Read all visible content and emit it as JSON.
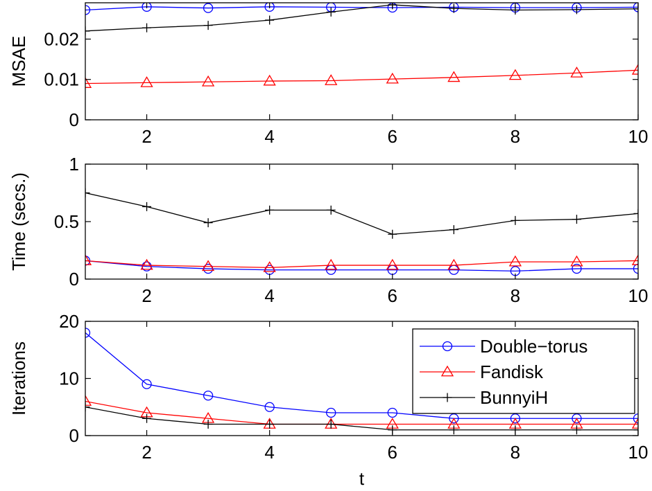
{
  "chart_data": [
    {
      "type": "line",
      "ylabel": "MSAE",
      "xlabel": "",
      "xlim": [
        1,
        10
      ],
      "ylim": [
        0,
        0.029
      ],
      "xticks": [
        2,
        4,
        6,
        8,
        10
      ],
      "yticks": [
        0,
        0.01,
        0.02
      ],
      "ytick_labels": [
        "0",
        "0.01",
        "0.02"
      ],
      "x": [
        1,
        2,
        3,
        4,
        5,
        6,
        7,
        8,
        9,
        10
      ],
      "series": [
        {
          "name": "Double-torus",
          "color": "#0000ff",
          "marker": "circle",
          "values": [
            0.0272,
            0.028,
            0.0277,
            0.028,
            0.0279,
            0.0278,
            0.0279,
            0.0278,
            0.0278,
            0.0279
          ]
        },
        {
          "name": "Fandisk",
          "color": "#ff0000",
          "marker": "triangle",
          "values": [
            0.009,
            0.0092,
            0.0094,
            0.0096,
            0.0097,
            0.0101,
            0.0105,
            0.011,
            0.0116,
            0.0123
          ]
        },
        {
          "name": "BunnyiH",
          "color": "#000000",
          "marker": "plus",
          "values": [
            0.022,
            0.0228,
            0.0234,
            0.0247,
            0.0267,
            0.0285,
            0.0276,
            0.0272,
            0.0273,
            0.0275
          ]
        }
      ]
    },
    {
      "type": "line",
      "ylabel": "Time (secs.)",
      "xlabel": "",
      "xlim": [
        1,
        10
      ],
      "ylim": [
        0,
        1
      ],
      "xticks": [
        2,
        4,
        6,
        8,
        10
      ],
      "yticks": [
        0,
        0.5,
        1
      ],
      "ytick_labels": [
        "0",
        "0.5",
        "1"
      ],
      "x": [
        1,
        2,
        3,
        4,
        5,
        6,
        7,
        8,
        9,
        10
      ],
      "series": [
        {
          "name": "Double-torus",
          "color": "#0000ff",
          "marker": "circle",
          "values": [
            0.16,
            0.11,
            0.09,
            0.08,
            0.08,
            0.08,
            0.08,
            0.07,
            0.09,
            0.09
          ]
        },
        {
          "name": "Fandisk",
          "color": "#ff0000",
          "marker": "triangle",
          "values": [
            0.16,
            0.12,
            0.11,
            0.1,
            0.12,
            0.12,
            0.12,
            0.15,
            0.15,
            0.16
          ]
        },
        {
          "name": "BunnyiH",
          "color": "#000000",
          "marker": "plus",
          "values": [
            0.75,
            0.63,
            0.49,
            0.6,
            0.6,
            0.39,
            0.43,
            0.51,
            0.52,
            0.57
          ]
        }
      ]
    },
    {
      "type": "line",
      "ylabel": "Iterations",
      "xlabel": "t",
      "xlim": [
        1,
        10
      ],
      "ylim": [
        0,
        20
      ],
      "xticks": [
        2,
        4,
        6,
        8,
        10
      ],
      "yticks": [
        0,
        10,
        20
      ],
      "ytick_labels": [
        "0",
        "10",
        "20"
      ],
      "x": [
        1,
        2,
        3,
        4,
        5,
        6,
        7,
        8,
        9,
        10
      ],
      "legend": {
        "position": "top-right",
        "entries": [
          "Double−torus",
          "Fandisk",
          "BunnyiH"
        ]
      },
      "series": [
        {
          "name": "Double-torus",
          "color": "#0000ff",
          "marker": "circle",
          "values": [
            18,
            9,
            7,
            5,
            4,
            4,
            3,
            3,
            3,
            3
          ]
        },
        {
          "name": "Fandisk",
          "color": "#ff0000",
          "marker": "triangle",
          "values": [
            6,
            4,
            3,
            2,
            2,
            2,
            2,
            2,
            2,
            2
          ]
        },
        {
          "name": "BunnyiH",
          "color": "#000000",
          "marker": "plus",
          "values": [
            5,
            3,
            2,
            2,
            2,
            1,
            1,
            1,
            1,
            1
          ]
        }
      ]
    }
  ]
}
